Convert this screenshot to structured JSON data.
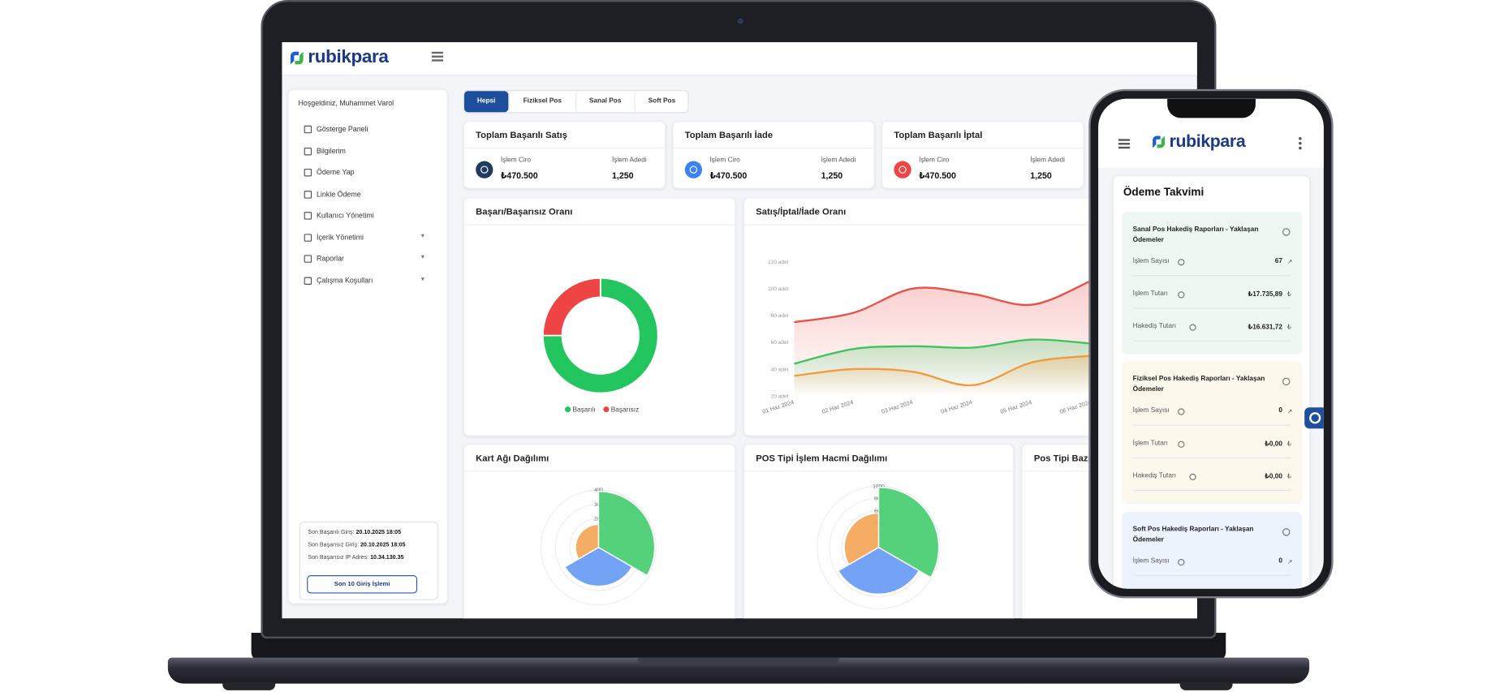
{
  "header": {
    "logo": "rubikpara"
  },
  "sidebar": {
    "greeting": "Hoşgeldiniz, Muhammet Varol",
    "menu": [
      "Gösterge Paneli",
      "Bilgilerim",
      "Ödeme Yap",
      "Linkle Ödeme",
      "Kullanıcı Yönetimi",
      "İçerik Yönetimi",
      "Raporlar",
      "Çalışma Koşulları"
    ],
    "login_info": [
      {
        "label": "Son Başarılı Giriş:",
        "value": "20.10.2025 18:05"
      },
      {
        "label": "Son Başarısız Giriş:",
        "value": "20.10.2025 18:05"
      },
      {
        "label": "Son Başarısız IP Adres:",
        "value": "10.34.130.35"
      }
    ],
    "button": "Son 10 Giriş İşlemi"
  },
  "tabs": [
    "Hepsi",
    "Fiziksel Pos",
    "Sanal Pos",
    "Soft Pos"
  ],
  "stats": [
    {
      "title": "Toplam Başarılı Satış",
      "ciro_label": "İşlem Ciro",
      "ciro": "₺470.500",
      "count_label": "İşlem Adedi",
      "count": "1,250"
    },
    {
      "title": "Toplam Başarılı İade",
      "ciro_label": "İşlem Ciro",
      "ciro": "₺470.500",
      "count_label": "İşlem Adedi",
      "count": "1,250"
    },
    {
      "title": "Toplam Başarılı İptal",
      "ciro_label": "İşlem Ciro",
      "ciro": "₺470.500",
      "count_label": "İşlem Adedi",
      "count": "1,250"
    }
  ],
  "chart_data": [
    {
      "type": "donut",
      "title": "Başarı/Başarısız Oranı",
      "categories": [
        "Başarılı",
        "Başarısız"
      ],
      "values": [
        75,
        25
      ],
      "colors": [
        "#22c55e",
        "#ef4444"
      ],
      "legend": "bottom"
    },
    {
      "type": "line",
      "title": "Satış/İptal/İade Oranı",
      "categories": [
        "01 Haz 2024",
        "02 Haz 2024",
        "03 Haz 2024",
        "04 Haz 2024",
        "05 Haz 2024",
        "06 Haz 2024"
      ],
      "series": [
        {
          "color": "#e8514a",
          "values": [
            75,
            82,
            100,
            96,
            88,
            106
          ]
        },
        {
          "color": "#3ec45e",
          "values": [
            44,
            55,
            57,
            56,
            62,
            59
          ]
        },
        {
          "color": "#f29a3c",
          "values": [
            35,
            40,
            38,
            28,
            45,
            50
          ]
        }
      ],
      "ylim": [
        20,
        120
      ],
      "yticks": [
        {
          "value": 20,
          "label": "20 adet"
        },
        {
          "value": 40,
          "label": "40 adet"
        },
        {
          "value": 60,
          "label": "60 adet"
        },
        {
          "value": 80,
          "label": "80 adet"
        },
        {
          "value": 100,
          "label": "100 adet"
        },
        {
          "value": 120,
          "label": "120 adet"
        }
      ],
      "area": true
    },
    {
      "type": "polar",
      "title": "Kart Ağı Dağılımı",
      "values": [
        390,
        270,
        160
      ],
      "colors": [
        "#4ccd74",
        "#6d9ef4",
        "#f4a95d"
      ],
      "ylim": [
        0,
        400
      ],
      "yticks": [
        100,
        200,
        300,
        400
      ]
    },
    {
      "type": "polar",
      "title": "POS Tipi İşlem Hacmi Dağılımı",
      "values": [
        980,
        760,
        560
      ],
      "colors": [
        "#4ccd74",
        "#6d9ef4",
        "#f4a95d"
      ],
      "ylim": [
        0,
        1000
      ],
      "yticks": [
        200,
        400,
        600,
        800,
        1000
      ]
    }
  ],
  "extra_card": {
    "title": "Pos Tipi Bazı"
  },
  "phone": {
    "logo": "rubikpara",
    "title": "Ödeme Takvimi",
    "cards": [
      {
        "title": "Sanal Pos Hakediş Raporları - Yaklaşan Ödemeler",
        "rows": [
          {
            "label": "İşlem Sayısı",
            "value": "67"
          },
          {
            "label": "İşlem Tutarı",
            "value": "₺17.735,89"
          },
          {
            "label": "Hakediş Tutarı",
            "value": "₺16.631,72"
          }
        ]
      },
      {
        "title": "Fiziksel Pos Hakediş Raporları - Yaklaşan Ödemeler",
        "rows": [
          {
            "label": "İşlem Sayısı",
            "value": "0"
          },
          {
            "label": "İşlem Tutarı",
            "value": "₺0,00"
          },
          {
            "label": "Hakediş Tutarı",
            "value": "₺0,00"
          }
        ]
      },
      {
        "title": "Soft Pos Hakediş Raporları - Yaklaşan Ödemeler",
        "rows": [
          {
            "label": "İşlem Sayısı",
            "value": "0"
          }
        ]
      }
    ]
  }
}
